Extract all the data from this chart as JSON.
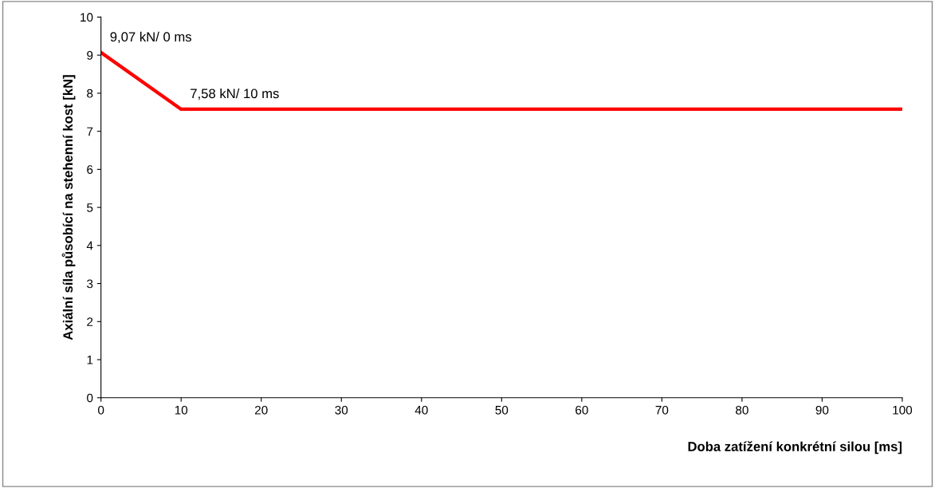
{
  "chart_data": {
    "type": "line",
    "xlabel": "Doba zatížení konkrétní silou [ms]",
    "ylabel": "Axiální síla působící na stehenní kost [kN]",
    "x": [
      0,
      10,
      100
    ],
    "series": [
      {
        "color": "#ff0000",
        "values": [
          9.07,
          7.58,
          7.58
        ]
      }
    ],
    "xlim": [
      0,
      100
    ],
    "xticks": [
      0,
      10,
      20,
      30,
      40,
      50,
      60,
      70,
      80,
      90,
      100
    ],
    "ylim": [
      0,
      10
    ],
    "yticks": [
      0,
      1,
      2,
      3,
      4,
      5,
      6,
      7,
      8,
      9,
      10
    ],
    "grid": false,
    "marker": "none",
    "line_style": "solid",
    "annotations": [
      {
        "text": "9,07 kN/ 0 ms",
        "x": 0,
        "y": 9.07
      },
      {
        "text": "7,58 kN/ 10 ms",
        "x": 10,
        "y": 7.58
      }
    ]
  }
}
